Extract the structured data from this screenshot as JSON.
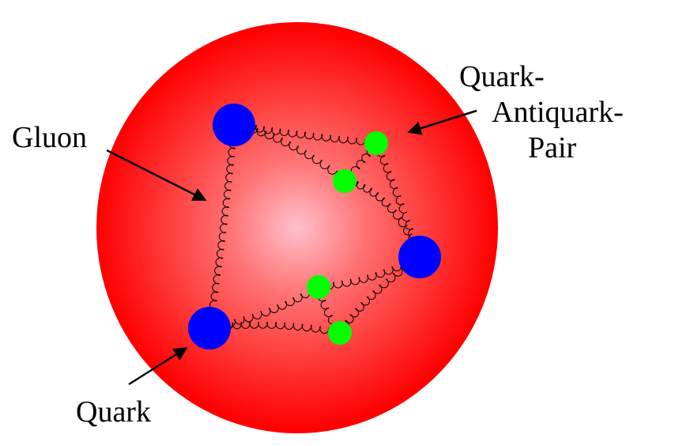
{
  "labels": {
    "gluon": "Gluon",
    "quark": "Quark",
    "pair_line1": "Quark-",
    "pair_line2": "Antiquark-",
    "pair_line3": "Pair"
  },
  "colors": {
    "sphere_center": "#ffc0cc",
    "sphere_edge": "#ff0000",
    "quark": "#0000ff",
    "antiquark_pair": "#00ff00",
    "gluon_line": "#000000",
    "arrow": "#000000"
  }
}
